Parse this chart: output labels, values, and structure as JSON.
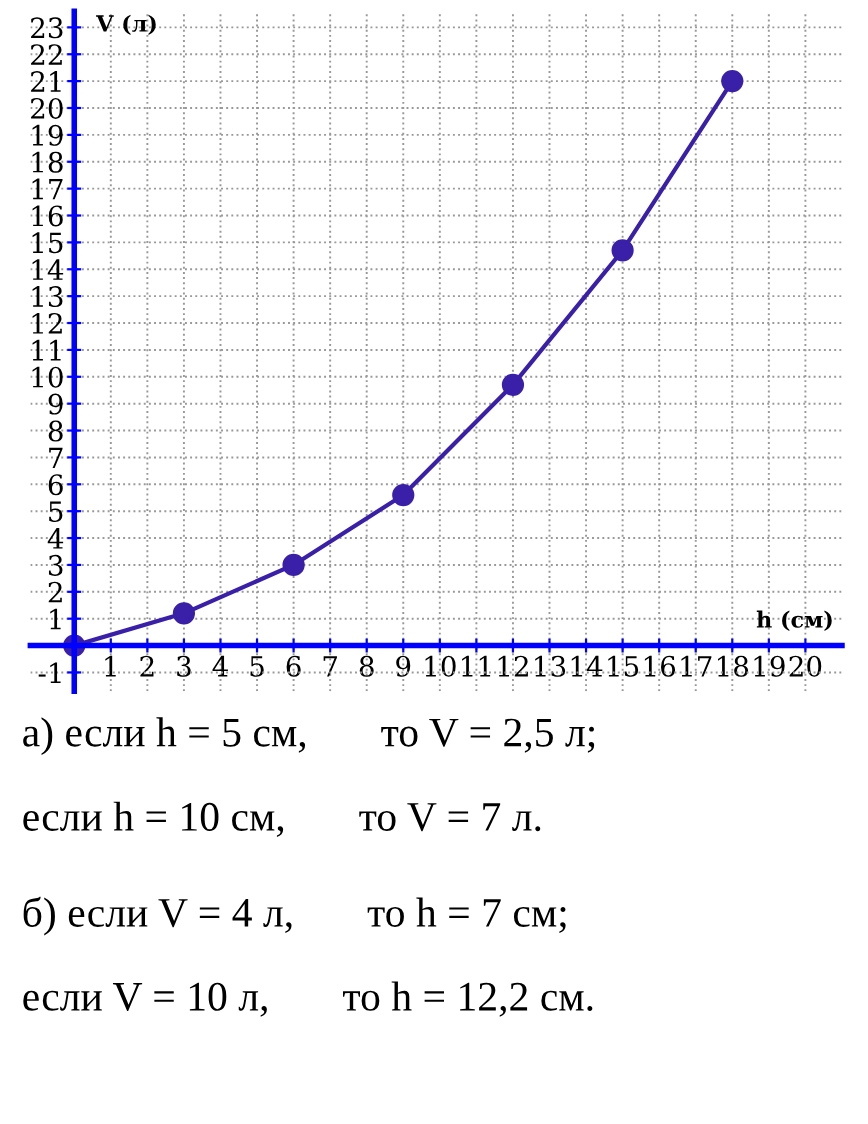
{
  "chart_data": {
    "type": "line",
    "xlabel": "h (см)",
    "ylabel": "V (л)",
    "x": [
      0,
      3,
      6,
      9,
      12,
      15,
      18
    ],
    "series": [
      {
        "color": "#3a1fa8",
        "values": [
          0,
          1.2,
          3,
          5.6,
          9.7,
          14.7,
          21
        ]
      }
    ],
    "marker": "circle",
    "line_style": "solid",
    "grid": true,
    "xlim": [
      -1.2,
      21
    ],
    "ylim": [
      -1.7,
      23.6
    ],
    "xticks": [
      {
        "value": 0,
        "label": null
      },
      1,
      2,
      3,
      4,
      5,
      6,
      7,
      8,
      9,
      10,
      11,
      12,
      13,
      14,
      15,
      16,
      17,
      18,
      19,
      20
    ],
    "yticks": [
      -1,
      {
        "value": 0,
        "label": null
      },
      1,
      2,
      3,
      4,
      5,
      6,
      7,
      8,
      9,
      10,
      11,
      12,
      13,
      14,
      15,
      16,
      17,
      18,
      19,
      20,
      21,
      22,
      23
    ],
    "annotations": [
      "а) если h = 5 см,       то V = 2,5 л;",
      "если h = 10 см,       то V = 7 л.",
      "б) если V = 4 л,       то h = 7 см;",
      "если V = 10 л,       то h = 12,2 см."
    ]
  }
}
